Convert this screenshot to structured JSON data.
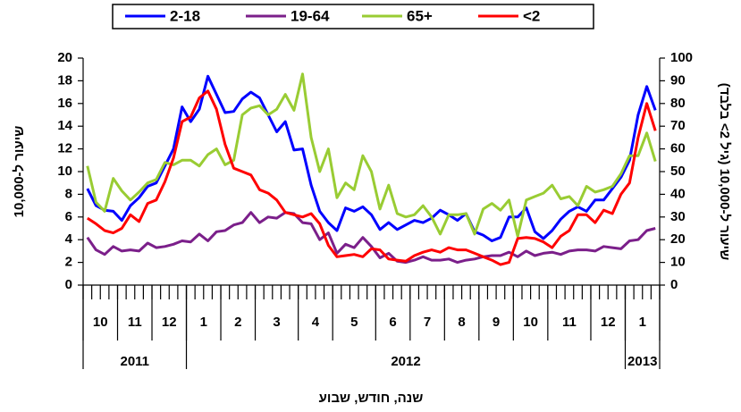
{
  "chart_data": {
    "type": "line",
    "y_label": "שיעור ל-10,000",
    "y2_label": "שיעור ל-10,000 (גיל 2> בלבד)",
    "x_label": "שנה, חודש, שבוע",
    "ylim": [
      0,
      20
    ],
    "yticks": [
      0,
      2,
      4,
      6,
      8,
      10,
      12,
      14,
      16,
      18,
      20
    ],
    "y2lim": [
      0,
      100
    ],
    "y2ticks": [
      0,
      10,
      20,
      30,
      40,
      50,
      60,
      70,
      80,
      90,
      100
    ],
    "months": [
      {
        "label": "10",
        "weeks": 4
      },
      {
        "label": "11",
        "weeks": 4
      },
      {
        "label": "12",
        "weeks": 4
      },
      {
        "label": "1",
        "weeks": 4
      },
      {
        "label": "2",
        "weeks": 4
      },
      {
        "label": "3",
        "weeks": 5
      },
      {
        "label": "4",
        "weeks": 4
      },
      {
        "label": "5",
        "weeks": 5
      },
      {
        "label": "6",
        "weeks": 4
      },
      {
        "label": "7",
        "weeks": 4
      },
      {
        "label": "8",
        "weeks": 4
      },
      {
        "label": "9",
        "weeks": 4
      },
      {
        "label": "10",
        "weeks": 4
      },
      {
        "label": "11",
        "weeks": 5
      },
      {
        "label": "12",
        "weeks": 4
      },
      {
        "label": "1",
        "weeks": 4
      }
    ],
    "years": [
      {
        "label": "2011",
        "months": 3
      },
      {
        "label": "2012",
        "months": 12
      },
      {
        "label": "2013",
        "months": 1
      }
    ],
    "series": [
      {
        "name": "2-18",
        "color": "#0000ff",
        "values": [
          8.5,
          7.0,
          6.6,
          6.5,
          5.7,
          7.0,
          7.7,
          8.7,
          9.0,
          10.5,
          12.0,
          15.7,
          14.4,
          15.5,
          18.4,
          16.8,
          15.2,
          15.3,
          16.4,
          17.0,
          16.5,
          15.0,
          13.5,
          14.4,
          11.9,
          12.0,
          8.8,
          6.5,
          5.5,
          4.8,
          6.8,
          6.5,
          6.9,
          6.2,
          4.9,
          5.5,
          4.9,
          5.3,
          5.7,
          5.5,
          5.9,
          6.6,
          6.2,
          5.7,
          6.3,
          4.7,
          4.4,
          3.9,
          4.2,
          6.0,
          6.0,
          6.8,
          4.7,
          4.1,
          4.8,
          5.8,
          6.5,
          6.9,
          6.5,
          7.5,
          7.5,
          8.5,
          9.5,
          11.0,
          15.0,
          17.5,
          15.4
        ]
      },
      {
        "name": "19-64",
        "color": "#7b1f8a",
        "values": [
          4.2,
          3.1,
          2.7,
          3.4,
          3.0,
          3.1,
          3.0,
          3.7,
          3.3,
          3.4,
          3.6,
          3.9,
          3.8,
          4.5,
          3.9,
          4.7,
          4.8,
          5.3,
          5.5,
          6.4,
          5.5,
          6.0,
          5.9,
          6.4,
          6.3,
          5.5,
          5.4,
          4.0,
          4.6,
          2.8,
          3.6,
          3.3,
          4.2,
          3.4,
          2.4,
          2.8,
          2.1,
          2.0,
          2.2,
          2.5,
          2.2,
          2.2,
          2.3,
          2.0,
          2.2,
          2.3,
          2.5,
          2.6,
          2.6,
          2.9,
          2.5,
          3.0,
          2.6,
          2.8,
          2.9,
          2.7,
          3.0,
          3.1,
          3.1,
          3.0,
          3.4,
          3.3,
          3.2,
          3.9,
          4.0,
          4.8,
          5.0
        ]
      },
      {
        "name": "65+",
        "color": "#99cc33",
        "values": [
          10.5,
          7.3,
          6.5,
          9.4,
          8.3,
          7.5,
          8.2,
          9.0,
          9.3,
          10.8,
          10.6,
          11.0,
          11.0,
          10.5,
          11.5,
          12.0,
          10.6,
          11.0,
          15.0,
          15.6,
          15.8,
          15.0,
          15.5,
          16.8,
          15.4,
          18.6,
          13.0,
          10.0,
          12.0,
          7.7,
          9.0,
          8.4,
          11.4,
          10.0,
          6.7,
          8.8,
          6.3,
          6.0,
          6.2,
          7.0,
          6.0,
          4.5,
          6.2,
          6.2,
          6.3,
          4.5,
          6.7,
          7.2,
          6.6,
          7.5,
          4.3,
          7.5,
          7.8,
          8.1,
          8.8,
          7.6,
          7.8,
          7.0,
          8.7,
          8.2,
          8.4,
          8.7,
          9.8,
          11.4,
          11.4,
          13.4,
          10.9
        ]
      },
      {
        "name": "<2",
        "color": "#ff0000",
        "axis": "y2",
        "values": [
          29.5,
          27,
          24,
          23,
          25,
          31,
          28,
          36,
          37.5,
          45.5,
          56,
          72,
          74,
          82.5,
          85.5,
          77.5,
          62,
          51.5,
          50,
          48.5,
          42,
          40.5,
          37.5,
          32,
          31,
          30,
          31.5,
          27,
          17.5,
          12.5,
          13,
          13.5,
          12.5,
          16,
          15.5,
          11.5,
          11,
          10.5,
          13,
          14.5,
          15.5,
          14.5,
          16.5,
          15.5,
          15.5,
          14,
          12.5,
          11,
          9,
          10,
          20.5,
          21,
          20.5,
          19,
          16.5,
          21.5,
          24,
          31,
          31,
          27.5,
          33,
          31.5,
          40,
          45,
          65,
          80,
          68
        ]
      }
    ]
  }
}
